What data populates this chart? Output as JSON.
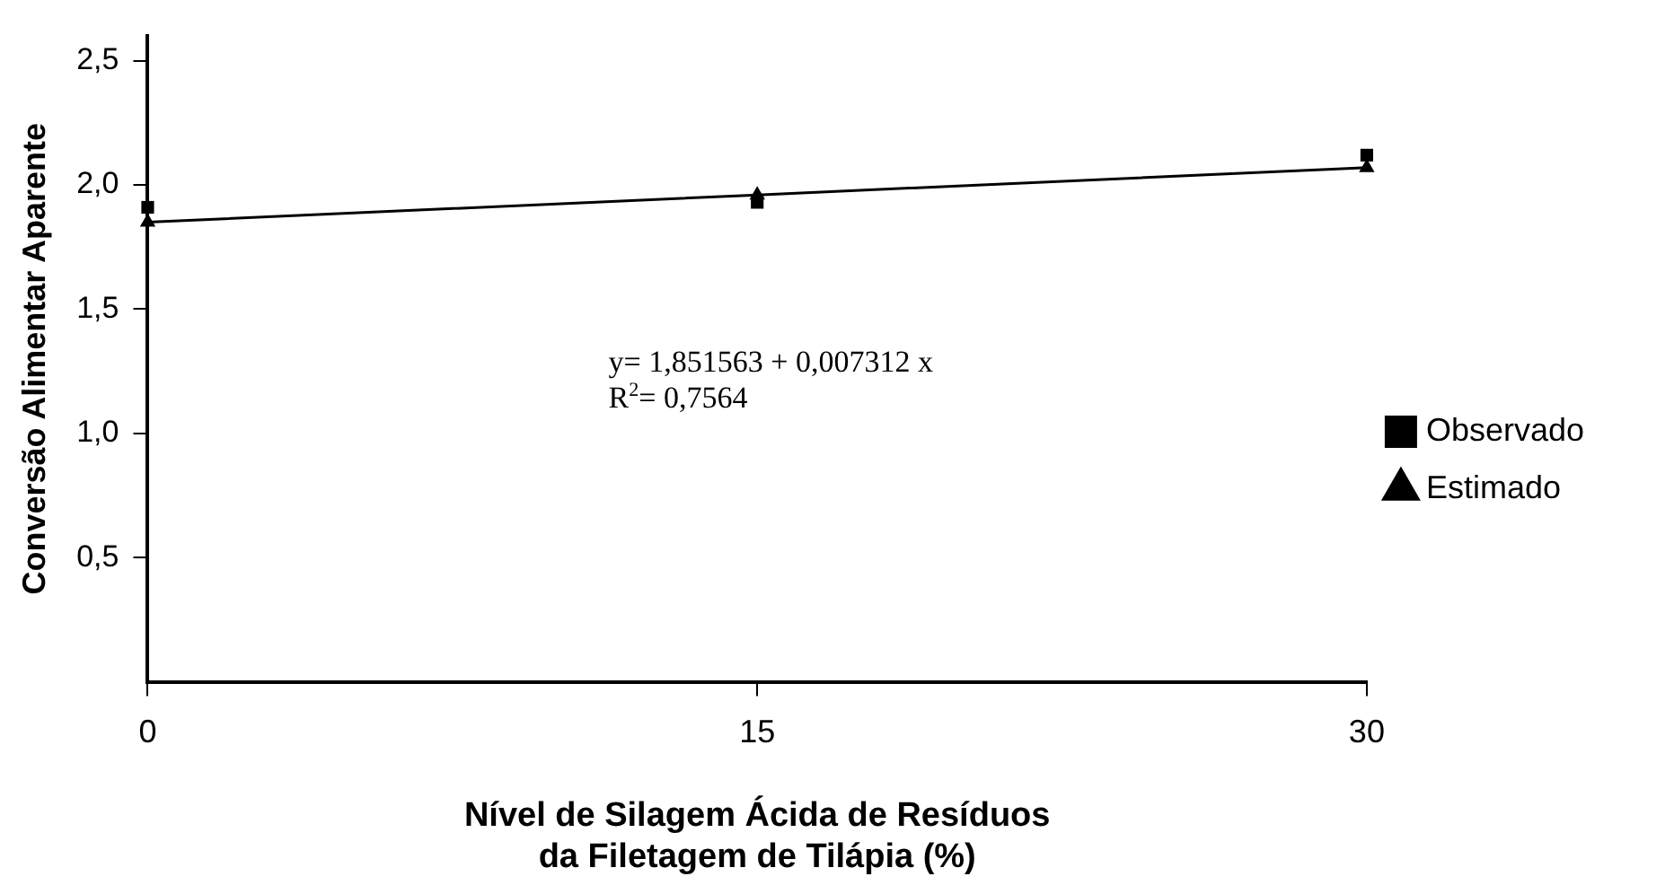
{
  "chart_data": {
    "type": "scatter",
    "xlabel": "Nível de Silagem Ácida de Resíduos da Filetagem de Tilápia (%)",
    "ylabel": "Conversão Alimentar Aparente",
    "x": [
      0,
      15,
      30
    ],
    "series": [
      {
        "name": "Observado",
        "type": "scatter",
        "marker": "square",
        "color": "#000000",
        "values": [
          1.91,
          1.93,
          2.12
        ]
      },
      {
        "name": "Estimado",
        "type": "line",
        "marker": "triangle",
        "line_style": "solid",
        "color": "#000000",
        "values": [
          1.85,
          1.96,
          2.07
        ]
      }
    ],
    "xlim": [
      0,
      30
    ],
    "xticks": [
      0,
      15,
      30
    ],
    "ylim": [
      0,
      2.6
    ],
    "yticks": [
      {
        "value": 0.5,
        "label": "0,5"
      },
      {
        "value": 1,
        "label": "1,0"
      },
      {
        "value": 1.5,
        "label": "1,5"
      },
      {
        "value": 2,
        "label": "2,0"
      },
      {
        "value": 2.5,
        "label": "2,5"
      }
    ],
    "grid": false,
    "legend": "right",
    "annotations": [
      "y= 1,851563 + 0,007312 x",
      "R$^{2}$= 0,7564"
    ]
  }
}
